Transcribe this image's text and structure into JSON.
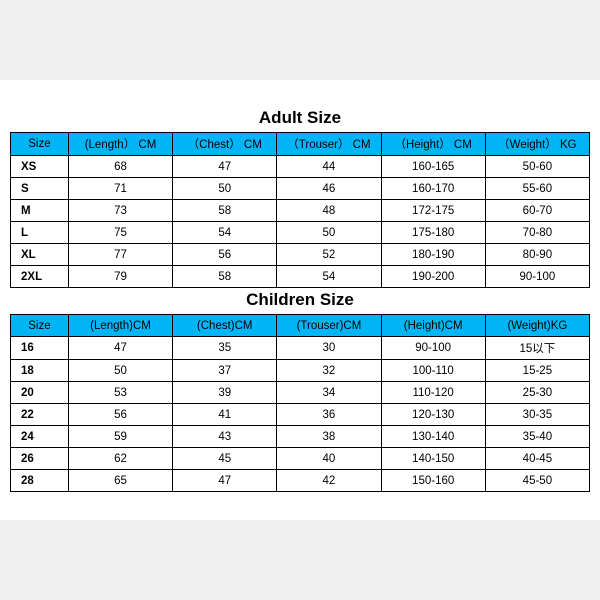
{
  "colors": {
    "header_bg": "#00b5f5",
    "border": "#000000",
    "page_bg": "#f0f0f0",
    "container_bg": "#ffffff"
  },
  "adult": {
    "title": "Adult Size",
    "columns": [
      "Size",
      "(Length） CM",
      "（Chest） CM",
      "（Trouser） CM",
      "（Height） CM",
      "（Weight） KG"
    ],
    "rows": [
      [
        "XS",
        "68",
        "47",
        "44",
        "160-165",
        "50-60"
      ],
      [
        "S",
        "71",
        "50",
        "46",
        "160-170",
        "55-60"
      ],
      [
        "M",
        "73",
        "58",
        "48",
        "172-175",
        "60-70"
      ],
      [
        "L",
        "75",
        "54",
        "50",
        "175-180",
        "70-80"
      ],
      [
        "XL",
        "77",
        "56",
        "52",
        "180-190",
        "80-90"
      ],
      [
        "2XL",
        "79",
        "58",
        "54",
        "190-200",
        "90-100"
      ]
    ]
  },
  "children": {
    "title": "Children Size",
    "columns": [
      "Size",
      "(Length)CM",
      "(Chest)CM",
      "(Trouser)CM",
      "(Height)CM",
      "(Weight)KG"
    ],
    "rows": [
      [
        "16",
        "47",
        "35",
        "30",
        "90-100",
        "15以下"
      ],
      [
        "18",
        "50",
        "37",
        "32",
        "100-110",
        "15-25"
      ],
      [
        "20",
        "53",
        "39",
        "34",
        "110-120",
        "25-30"
      ],
      [
        "22",
        "56",
        "41",
        "36",
        "120-130",
        "30-35"
      ],
      [
        "24",
        "59",
        "43",
        "38",
        "130-140",
        "35-40"
      ],
      [
        "26",
        "62",
        "45",
        "40",
        "140-150",
        "40-45"
      ],
      [
        "28",
        "65",
        "47",
        "42",
        "150-160",
        "45-50"
      ]
    ]
  }
}
